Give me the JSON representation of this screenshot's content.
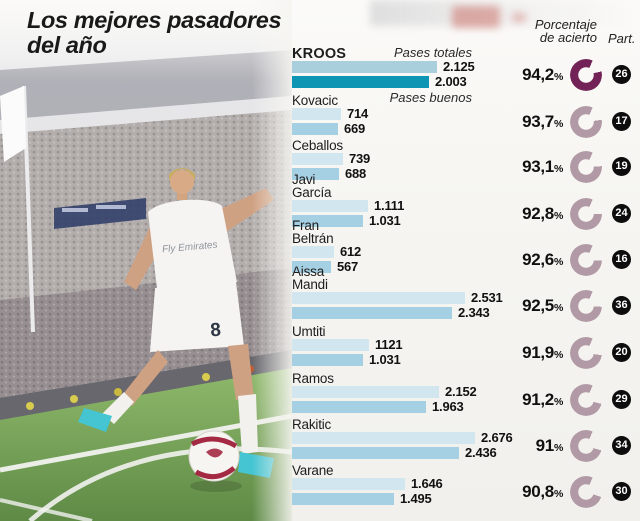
{
  "title": "Los mejores pasadores del año",
  "header": {
    "pct_line1": "Porcentaje",
    "pct_line2": "de acierto",
    "part": "Part.",
    "percent_symbol": "%"
  },
  "legend": {
    "totales": "Pases totales",
    "buenos": "Pases buenos"
  },
  "photo": {
    "jersey_sponsor": "Fly Emirates",
    "shorts_number": "8"
  },
  "colors": {
    "bar_total": "#d2e6f0",
    "bar_good": "#a5cfe2",
    "bar_total_hl": "#a9cfdd",
    "bar_good_hl": "#0f95b4",
    "donut": "#b19aa5",
    "donut_hl": "#722257",
    "badge_bg": "#0d0d0d",
    "badge_text": "#ffffff"
  },
  "chart_data": {
    "type": "bar",
    "title": "Los mejores pasadores del año",
    "series_labels": [
      "Pases totales",
      "Pases buenos"
    ],
    "xmax": 2676,
    "legend_position": "top",
    "players": [
      {
        "name": "KROOS",
        "totales": "2.125",
        "buenos": "2.003",
        "pct": "94,2",
        "part": "26",
        "highlight": true
      },
      {
        "name": "Kovacic",
        "totales": "714",
        "buenos": "669",
        "pct": "93,7",
        "part": "17",
        "highlight": false
      },
      {
        "name": "Ceballos",
        "totales": "739",
        "buenos": "688",
        "pct": "93,1",
        "part": "19",
        "highlight": false
      },
      {
        "name": "Javi\nGarcía",
        "totales": "1.111",
        "buenos": "1.031",
        "pct": "92,8",
        "part": "24",
        "highlight": false
      },
      {
        "name": "Fran\nBeltrán",
        "totales": "612",
        "buenos": "567",
        "pct": "92,6",
        "part": "16",
        "highlight": false
      },
      {
        "name": "Aissa\nMandi",
        "totales": "2.531",
        "buenos": "2.343",
        "pct": "92,5",
        "part": "36",
        "highlight": false
      },
      {
        "name": "Umtiti",
        "totales": "1121",
        "buenos": "1.031",
        "pct": "91,9",
        "part": "20",
        "highlight": false
      },
      {
        "name": "Ramos",
        "totales": "2.152",
        "buenos": "1.963",
        "pct": "91,2",
        "part": "29",
        "highlight": false
      },
      {
        "name": "Rakitic",
        "totales": "2.676",
        "buenos": "2.436",
        "pct": "91",
        "part": "34",
        "highlight": false
      },
      {
        "name": "Varane",
        "totales": "1.646",
        "buenos": "1.495",
        "pct": "90,8",
        "part": "30",
        "highlight": false
      }
    ]
  }
}
